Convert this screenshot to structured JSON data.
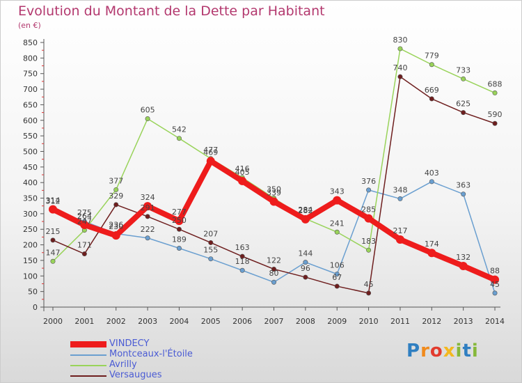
{
  "title": "Evolution du Montant de la Dette par Habitant",
  "unit": "(en €)",
  "logo": {
    "letters": [
      {
        "ch": "P",
        "color": "#2f7fc1"
      },
      {
        "ch": "r",
        "color": "#f08a1c"
      },
      {
        "ch": "o",
        "color": "#e23b2e"
      },
      {
        "ch": "x",
        "color": "#f3b81f"
      },
      {
        "ch": "i",
        "color": "#86b83a"
      },
      {
        "ch": "t",
        "color": "#2f7fc1"
      },
      {
        "ch": "i",
        "color": "#86b83a"
      }
    ]
  },
  "chart_data": {
    "type": "line",
    "x": [
      "2000",
      "2001",
      "2002",
      "2003",
      "2004",
      "2005",
      "2006",
      "2007",
      "2008",
      "2009",
      "2010",
      "2011",
      "2012",
      "2013",
      "2014"
    ],
    "ylim": [
      0,
      850
    ],
    "yticks": [
      "0",
      "50",
      "100",
      "150",
      "200",
      "250",
      "300",
      "350",
      "400",
      "450",
      "500",
      "550",
      "600",
      "650",
      "700",
      "750",
      "800",
      "850"
    ],
    "grid": false,
    "legend_position": "bottom-left",
    "series": [
      {
        "name": "VINDECY",
        "color": "#ee1c1c",
        "thick": true,
        "values": [
          314,
          264,
          230,
          324,
          277,
          469,
          405,
          339,
          282,
          343,
          285,
          217,
          174,
          132,
          88
        ]
      },
      {
        "name": "Montceaux-l'Étoile",
        "color": "#6a9fd0",
        "thick": false,
        "values": [
          312,
          275,
          236,
          222,
          189,
          155,
          118,
          80,
          144,
          106,
          376,
          348,
          403,
          363,
          45
        ]
      },
      {
        "name": "Avrilly",
        "color": "#99d35a",
        "thick": false,
        "values": [
          147,
          247,
          377,
          605,
          542,
          477,
          416,
          350,
          284,
          241,
          183,
          830,
          779,
          733,
          688
        ]
      },
      {
        "name": "Versaugues",
        "color": "#6e1e1e",
        "thick": false,
        "values": [
          215,
          171,
          329,
          291,
          250,
          207,
          163,
          122,
          96,
          67,
          45,
          740,
          669,
          625,
          590
        ]
      }
    ]
  }
}
